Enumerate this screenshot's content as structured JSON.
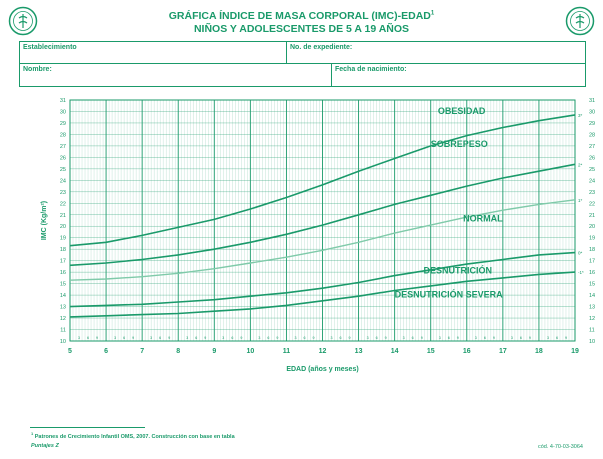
{
  "header": {
    "title_line1": "GRÁFICA ÍNDICE DE MASA CORPORAL (IMC)-EDAD",
    "title_sup": "1",
    "title_line2": "NIÑOS Y ADOLESCENTES DE 5 A 19 AÑOS"
  },
  "form": {
    "establecimiento": "Establecimiento",
    "expediente": "No. de expediente:",
    "nombre": "Nombre:",
    "nacimiento": "Fecha de nacimiento:"
  },
  "footer": {
    "note_sup": "1",
    "note": "Patrones de Crecimiento Infantil OMS, 2007. Construcción con base en tabla",
    "points": "Puntajes Z",
    "code": "cód. 4-70-03-3064"
  },
  "colors": {
    "accent": "#1a9a6a",
    "curve_main": "#1a9a6a",
    "curve_light": "#7fcaa9",
    "grid": "#1a9a6a"
  },
  "chart_data": {
    "type": "line",
    "xlabel": "EDAD (años y meses)",
    "ylabel": "IMC (Kg/m²)",
    "xlim": [
      5,
      19
    ],
    "ylim": [
      10,
      31
    ],
    "x_ticks": [
      "5",
      "6",
      "7",
      "8",
      "9",
      "10",
      "11",
      "12",
      "13",
      "14",
      "15",
      "16",
      "17",
      "18",
      "19"
    ],
    "y_ticks": [
      "10",
      "11",
      "12",
      "13",
      "14",
      "15",
      "16",
      "17",
      "18",
      "19",
      "20",
      "21",
      "22",
      "23",
      "24",
      "25",
      "26",
      "27",
      "28",
      "29",
      "30",
      "31"
    ],
    "month_ticks": [
      "3",
      "6",
      "9"
    ],
    "x": [
      5,
      6,
      7,
      8,
      9,
      10,
      11,
      12,
      13,
      14,
      15,
      16,
      17,
      18,
      19
    ],
    "series": [
      {
        "name": "3",
        "label": "3*",
        "values": [
          18.3,
          18.6,
          19.2,
          19.9,
          20.6,
          21.5,
          22.5,
          23.6,
          24.8,
          25.9,
          27.0,
          27.9,
          28.6,
          29.2,
          29.7
        ]
      },
      {
        "name": "2",
        "label": "2*",
        "values": [
          16.6,
          16.8,
          17.1,
          17.5,
          18.0,
          18.6,
          19.3,
          20.1,
          21.0,
          21.9,
          22.7,
          23.5,
          24.2,
          24.8,
          25.4
        ]
      },
      {
        "name": "1",
        "label": "1*",
        "values": [
          15.3,
          15.4,
          15.6,
          15.9,
          16.3,
          16.8,
          17.3,
          17.9,
          18.6,
          19.4,
          20.1,
          20.8,
          21.4,
          21.9,
          22.3
        ]
      },
      {
        "name": "0",
        "label": "0*",
        "values": [
          13.0,
          13.1,
          13.2,
          13.4,
          13.6,
          13.9,
          14.2,
          14.6,
          15.1,
          15.7,
          16.2,
          16.7,
          17.1,
          17.5,
          17.7
        ]
      },
      {
        "name": "-1",
        "label": "-1*",
        "values": [
          12.1,
          12.2,
          12.3,
          12.4,
          12.6,
          12.8,
          13.1,
          13.5,
          13.9,
          14.4,
          14.8,
          15.2,
          15.5,
          15.8,
          16.0
        ]
      }
    ],
    "zones": [
      {
        "label": "OBESIDAD",
        "x": 15.2,
        "y": 29.8
      },
      {
        "label": "SOBREPESO",
        "x": 15.0,
        "y": 26.9
      },
      {
        "label": "NORMAL",
        "x": 15.9,
        "y": 20.4
      },
      {
        "label": "DESNUTRICIÓN",
        "x": 14.8,
        "y": 15.9
      },
      {
        "label": "DESNUTRICIÓN SEVERA",
        "x": 14.0,
        "y": 13.8
      }
    ],
    "grid": true
  }
}
